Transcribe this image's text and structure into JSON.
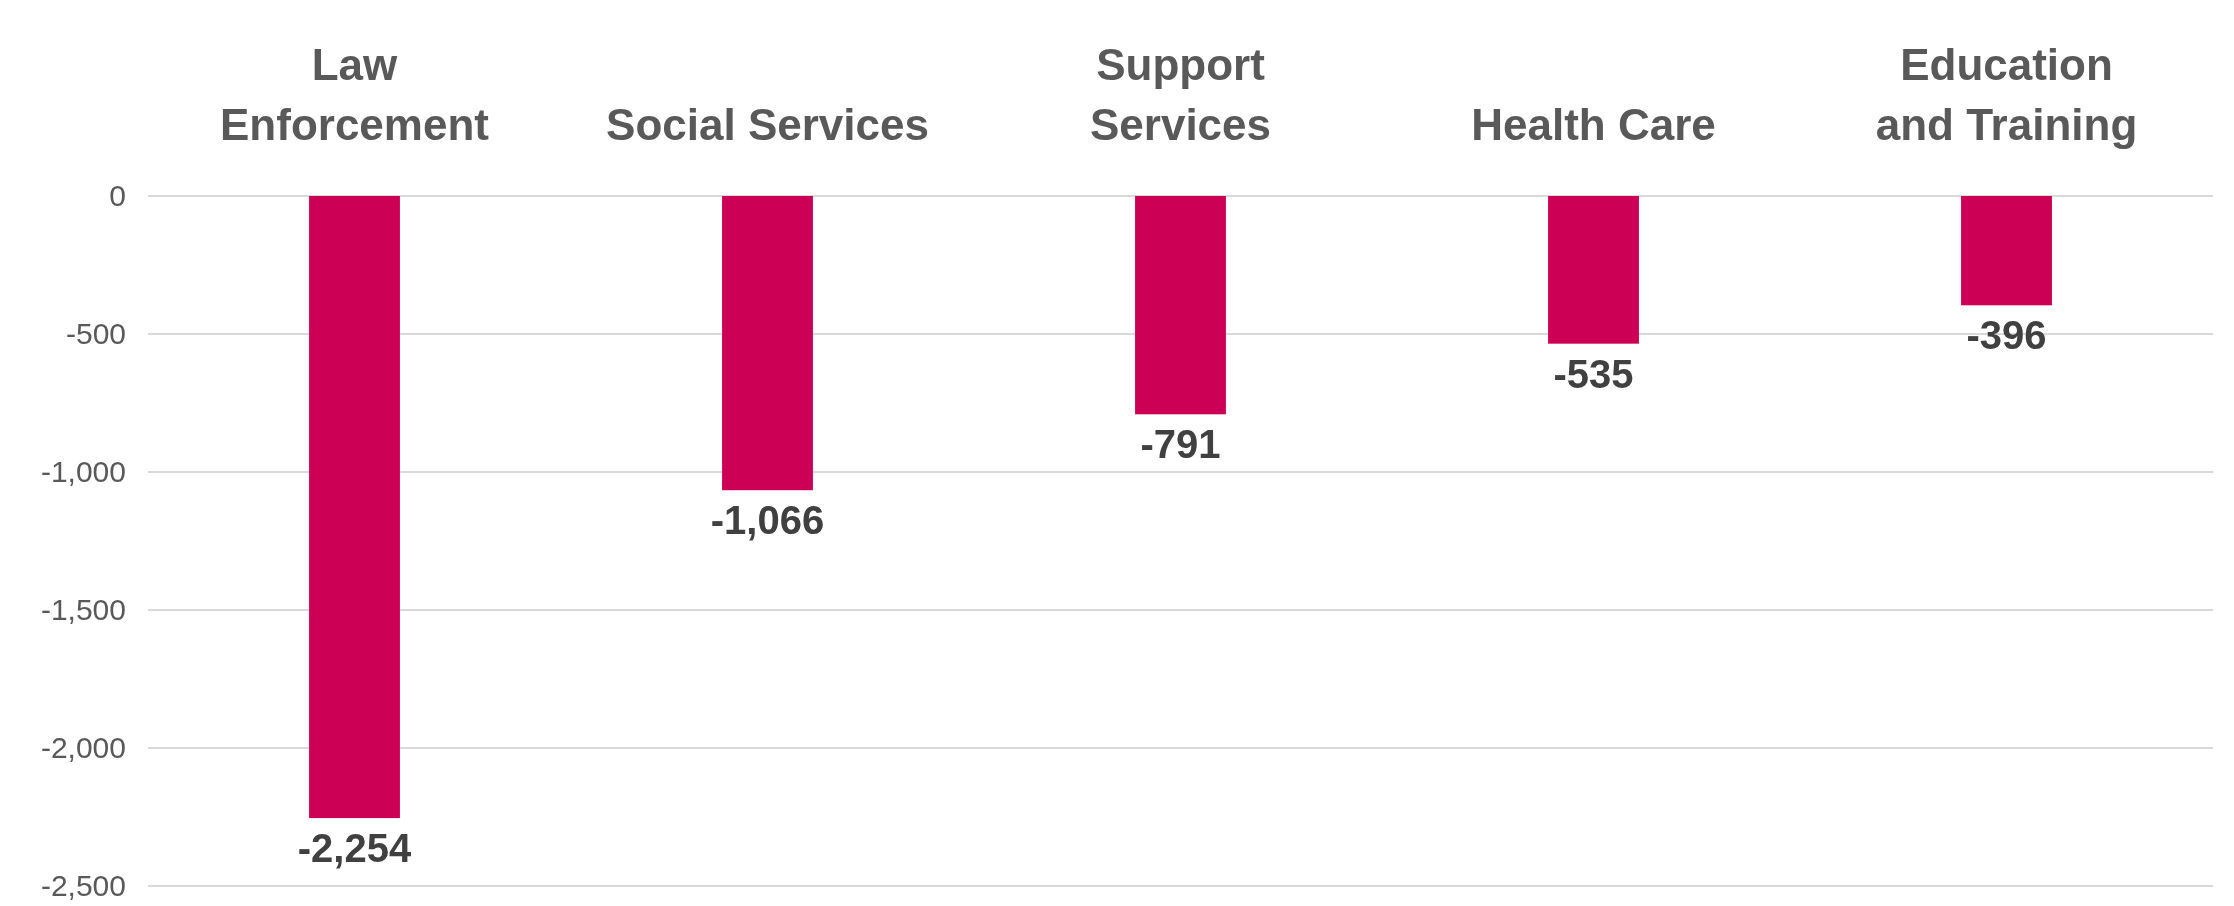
{
  "chart_data": {
    "type": "bar",
    "categories": [
      "Law Enforcement",
      "Social Services",
      "Support Services",
      "Health Care",
      "Education and Training"
    ],
    "values": [
      -2254,
      -1066,
      -791,
      -535,
      -396
    ],
    "color": "#cc0055",
    "value_labels": [
      "-2,254",
      "-1,066",
      "-791",
      "-535",
      "-396"
    ],
    "ylim": [
      -2500,
      0
    ],
    "yticks": [
      {
        "value": -2500,
        "label": "-2,500"
      },
      {
        "value": -2000,
        "label": "-2,000"
      },
      {
        "value": -1500,
        "label": "-1,500"
      },
      {
        "value": -1000,
        "label": "-1,000"
      },
      {
        "value": -500,
        "label": "-500"
      },
      0
    ],
    "grid": "y"
  }
}
